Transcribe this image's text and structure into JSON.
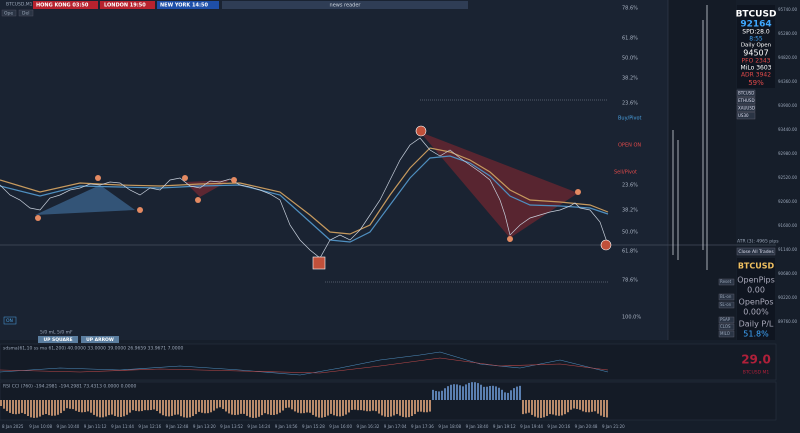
{
  "header": {
    "symbol": "BTCUSD,M1",
    "buttons": [
      "Ope",
      "Del"
    ],
    "clocks": [
      "HONG KONG 03:50",
      "LONDON 19:50",
      "NEW YORK 14:50"
    ],
    "news": "news reader"
  },
  "fib_levels": [
    "78.6%",
    "61.8%",
    "50.0%",
    "38.2%",
    "23.6%",
    "23.6%",
    "38.2%",
    "50.0%",
    "61.8%",
    "78.6%",
    "100.0%"
  ],
  "annotations": [
    "Buy/Pivot",
    "OPEN ON",
    "Sell/Pivot"
  ],
  "info_panel": {
    "symbol": "BTCUSD",
    "price": "92164",
    "spread": "SPD:28.0",
    "timer": "8:55",
    "open_label": "Daily Open",
    "open": "94507",
    "pfo": "PFO 2343",
    "milo": "MiLo 3603",
    "adr": "ADR 3942",
    "adr_pct": "59%"
  },
  "symbol_buttons": [
    "BTCUSD",
    "ETHUSD",
    "XAUUSD",
    "US30"
  ],
  "trade": {
    "close_all": "Close All Trades",
    "atr": "ATR (3): 4965 pips",
    "symbol": "BTCUSD",
    "open_pips_label": "OpenPips",
    "open_pips": "0.00",
    "open_pos_label": "OpenPos",
    "open_pos": "0.00%",
    "daily_label": "Daily P/L",
    "daily": "51.8%"
  },
  "side_buttons": [
    "Reset",
    "BL-on",
    "SL-on",
    "PSAP",
    "CLOS",
    "MILO"
  ],
  "bottom_buttons": {
    "on": "ON",
    "up_square": "UP SQUARE",
    "up_arrow": "UP ARROW",
    "lots": "5/0 mL 5/0 mF"
  },
  "indicators": {
    "panel1": "sdsma(61,10 ss ma 61,200) 40.0000 33.0000 39.0000 26.9659 33.9671 7.0000",
    "value": "29.0",
    "value_label": "BTCUSD M1",
    "panel2": "RSI CCI (760) -194.2981 -194.2981 73.4313 0.0000 0.0000"
  },
  "price_axis": [
    "95740.00",
    "95280.00",
    "94820.00",
    "94360.00",
    "93900.00",
    "93440.00",
    "92980.00",
    "92520.00",
    "92060.00",
    "91600.00",
    "91140.00",
    "90680.00",
    "90220.00",
    "89760.00"
  ],
  "time_axis": [
    "8 Jan 2025",
    "9 Jan 10:08",
    "9 Jan 10:40",
    "9 Jan 11:12",
    "9 Jan 11:44",
    "9 Jan 12:16",
    "9 Jan 12:48",
    "9 Jan 13:20",
    "9 Jan 13:52",
    "9 Jan 14:24",
    "9 Jan 14:56",
    "9 Jan 15:28",
    "9 Jan 16:00",
    "9 Jan 16:32",
    "9 Jan 17:04",
    "9 Jan 17:36",
    "9 Jan 18:08",
    "9 Jan 18:40",
    "9 Jan 19:12",
    "9 Jan 19:44",
    "9 Jan 20:16",
    "9 Jan 20:48",
    "9 Jan 21:20"
  ]
}
